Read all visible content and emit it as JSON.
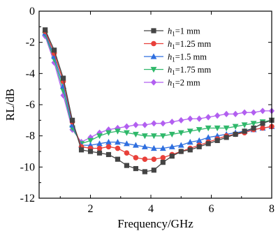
{
  "chart_data": {
    "type": "line",
    "xlabel": "Frequency/GHz",
    "ylabel": "RL/dB",
    "xlim": [
      0.3,
      8
    ],
    "ylim": [
      -12,
      0
    ],
    "xticks": [
      2,
      4,
      6,
      8
    ],
    "yticks": [
      0,
      -2,
      -4,
      -6,
      -8,
      -10,
      -12
    ],
    "grid": false,
    "legend_position": "top-right",
    "x": [
      0.5,
      0.8,
      1.1,
      1.4,
      1.7,
      2.0,
      2.3,
      2.6,
      2.9,
      3.2,
      3.5,
      3.8,
      4.1,
      4.4,
      4.7,
      5.0,
      5.3,
      5.6,
      5.9,
      6.2,
      6.5,
      6.8,
      7.1,
      7.4,
      7.7,
      8.0
    ],
    "series": [
      {
        "label_var": "h",
        "label_sub": "1",
        "label_val": "=1 mm",
        "color": "#444444",
        "marker": "square",
        "values": [
          -1.2,
          -2.5,
          -4.3,
          -7.0,
          -8.9,
          -9.0,
          -9.1,
          -9.2,
          -9.5,
          -9.9,
          -10.1,
          -10.3,
          -10.2,
          -9.7,
          -9.3,
          -9.0,
          -8.9,
          -8.7,
          -8.5,
          -8.3,
          -8.1,
          -7.9,
          -7.7,
          -7.5,
          -7.2,
          -7.0
        ]
      },
      {
        "label_var": "h",
        "label_sub": "1",
        "label_val": "=1.25 mm",
        "color": "#e8403a",
        "marker": "circle",
        "values": [
          -1.3,
          -2.7,
          -4.5,
          -7.1,
          -8.7,
          -8.8,
          -8.8,
          -8.7,
          -8.8,
          -9.1,
          -9.4,
          -9.5,
          -9.5,
          -9.4,
          -9.2,
          -9.0,
          -8.8,
          -8.6,
          -8.4,
          -8.2,
          -8.0,
          -7.9,
          -7.8,
          -7.6,
          -7.5,
          -7.4
        ]
      },
      {
        "label_var": "h",
        "label_sub": "1",
        "label_val": "=1.5 mm",
        "color": "#2f6fdf",
        "marker": "triangle-up",
        "values": [
          -1.4,
          -2.9,
          -4.8,
          -7.3,
          -8.6,
          -8.6,
          -8.5,
          -8.4,
          -8.4,
          -8.5,
          -8.6,
          -8.7,
          -8.8,
          -8.8,
          -8.7,
          -8.6,
          -8.4,
          -8.3,
          -8.1,
          -8.0,
          -7.9,
          -7.8,
          -7.7,
          -7.6,
          -7.5,
          -7.4
        ]
      },
      {
        "label_var": "h",
        "label_sub": "1",
        "label_val": "=1.75 mm",
        "color": "#2fb86a",
        "marker": "triangle-down",
        "values": [
          -1.5,
          -3.1,
          -5.1,
          -7.5,
          -8.5,
          -8.3,
          -8.0,
          -7.8,
          -7.7,
          -7.8,
          -7.9,
          -8.0,
          -8.0,
          -8.0,
          -7.9,
          -7.8,
          -7.7,
          -7.6,
          -7.5,
          -7.5,
          -7.5,
          -7.4,
          -7.3,
          -7.2,
          -7.1,
          -7.0
        ]
      },
      {
        "label_var": "h",
        "label_sub": "1",
        "label_val": "=2 mm",
        "color": "#b25ff0",
        "marker": "diamond",
        "values": [
          -1.6,
          -3.3,
          -5.4,
          -7.6,
          -8.4,
          -8.1,
          -7.8,
          -7.6,
          -7.5,
          -7.4,
          -7.3,
          -7.3,
          -7.2,
          -7.2,
          -7.1,
          -7.0,
          -6.9,
          -6.9,
          -6.8,
          -6.7,
          -6.6,
          -6.6,
          -6.5,
          -6.5,
          -6.4,
          -6.4
        ]
      }
    ]
  }
}
